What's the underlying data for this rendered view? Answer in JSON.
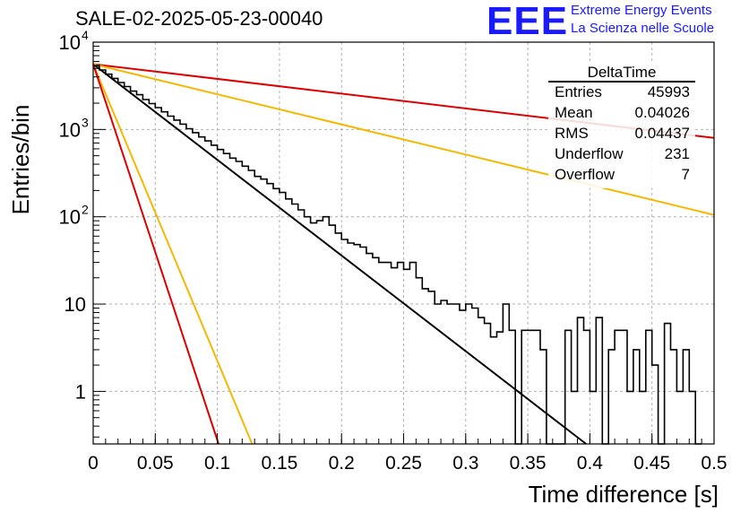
{
  "header": {
    "run_title": "SALE-02-2025-05-23-00040",
    "logo_text": "EEE",
    "logo_line1": "Extreme Energy Events",
    "logo_line2": "La Scienza nelle Scuole",
    "logo_color": "#1a1aff"
  },
  "stats_box": {
    "title": "DeltaTime",
    "rows": [
      {
        "label": "Entries",
        "value": "45993"
      },
      {
        "label": "Mean",
        "value": "0.04026"
      },
      {
        "label": "RMS",
        "value": "0.04437"
      },
      {
        "label": "Underflow",
        "value": "231"
      },
      {
        "label": "Overflow",
        "value": "7"
      }
    ]
  },
  "chart_data": {
    "type": "line",
    "title": "SALE-02-2025-05-23-00040",
    "xlabel": "Time difference [s]",
    "ylabel": "Entries/bin",
    "xlim": [
      0,
      0.5
    ],
    "ylim": [
      0.25,
      10000
    ],
    "yscale": "log",
    "grid": true,
    "x_ticks": [
      "0",
      "0.05",
      "0.1",
      "0.15",
      "0.2",
      "0.25",
      "0.3",
      "0.35",
      "0.4",
      "0.45",
      "0.5"
    ],
    "y_ticks": [
      {
        "value": 1,
        "label": "1"
      },
      {
        "value": 10,
        "label": "10"
      },
      {
        "value": 100,
        "label": "10",
        "exp": "2"
      },
      {
        "value": 1000,
        "label": "10",
        "exp": "3"
      },
      {
        "value": 10000,
        "label": "10",
        "exp": "4"
      }
    ],
    "histogram": {
      "name": "DeltaTime",
      "bin_width": 0.005,
      "x_start": 0,
      "color": "#000000",
      "values": [
        5400,
        4800,
        4300,
        3850,
        3450,
        3100,
        2750,
        2500,
        2200,
        1980,
        1780,
        1590,
        1420,
        1280,
        1150,
        1020,
        920,
        820,
        740,
        660,
        590,
        530,
        470,
        430,
        380,
        340,
        290,
        270,
        240,
        210,
        190,
        160,
        140,
        120,
        100,
        85,
        90,
        100,
        80,
        65,
        55,
        50,
        48,
        45,
        38,
        34,
        30,
        30,
        26,
        30,
        25,
        30,
        20,
        15,
        14,
        10,
        11,
        10,
        10,
        8.5,
        10,
        9,
        7,
        6,
        4.2,
        4.8,
        10,
        5,
        0,
        5,
        5,
        5,
        3,
        0,
        0,
        0,
        5,
        1,
        7,
        5,
        1,
        7,
        0,
        3,
        5,
        5,
        1,
        3,
        1,
        5,
        2,
        0,
        6,
        3,
        1,
        3,
        1,
        0
      ]
    },
    "series": [
      {
        "color": "#000000",
        "x": [
          0,
          0.397
        ],
        "y": [
          5600,
          0.25
        ]
      },
      {
        "color": "#dd0000",
        "x": [
          0,
          0.5
        ],
        "y": [
          5600,
          800
        ]
      },
      {
        "color": "#f5b800",
        "x": [
          0,
          0.5
        ],
        "y": [
          5600,
          105
        ]
      },
      {
        "color": "#f5b800",
        "x": [
          0,
          0.128
        ],
        "y": [
          5600,
          0.25
        ]
      },
      {
        "color": "#dd0000",
        "x": [
          0,
          0.101
        ],
        "y": [
          5600,
          0.25
        ]
      }
    ]
  }
}
